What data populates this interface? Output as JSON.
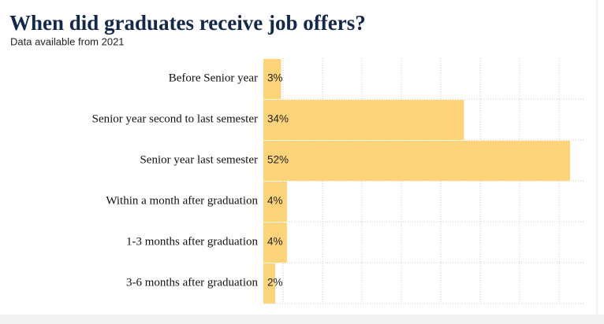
{
  "chart_data": {
    "type": "bar",
    "orientation": "horizontal",
    "title": "When did graduates receive job offers?",
    "subtitle": "Data available from 2021",
    "categories": [
      "Before Senior year",
      "Senior year second to last semester",
      "Senior year last semester",
      "Within a month after graduation",
      "1-3 months after graduation",
      "3-6 months after graduation"
    ],
    "values": [
      3,
      34,
      52,
      4,
      4,
      2
    ],
    "value_labels": [
      "3%",
      "34%",
      "52%",
      "4%",
      "4%",
      "2%"
    ],
    "color": "#fed47a",
    "grid": true
  }
}
